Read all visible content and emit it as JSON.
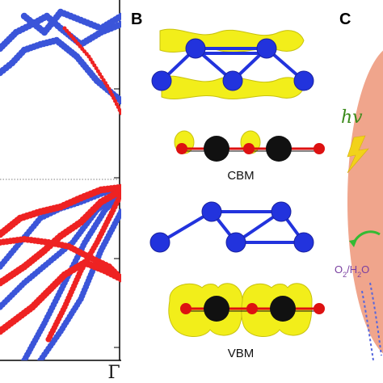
{
  "panels": {
    "a": {
      "x_tick_label": "Γ"
    },
    "b": {
      "letter": "B",
      "cbm_label": "CBM",
      "vbm_label": "VBM"
    },
    "c": {
      "letter": "C",
      "photon_label": "hv",
      "species_prefix": "O",
      "species_sub": "2",
      "species_suffix": "/H",
      "species_sub2": "2",
      "species_tail": "O"
    }
  },
  "colors": {
    "blue_band": "#3b55d9",
    "red_band": "#ee2222",
    "isosurface": "#f2ee1a",
    "carbon": "#111111",
    "oxygen": "#dd1111",
    "nitrogen": "#2233dd",
    "sphere": "#f0a58c",
    "arrow": "#33bb33",
    "lightning": "#f2d21a"
  }
}
